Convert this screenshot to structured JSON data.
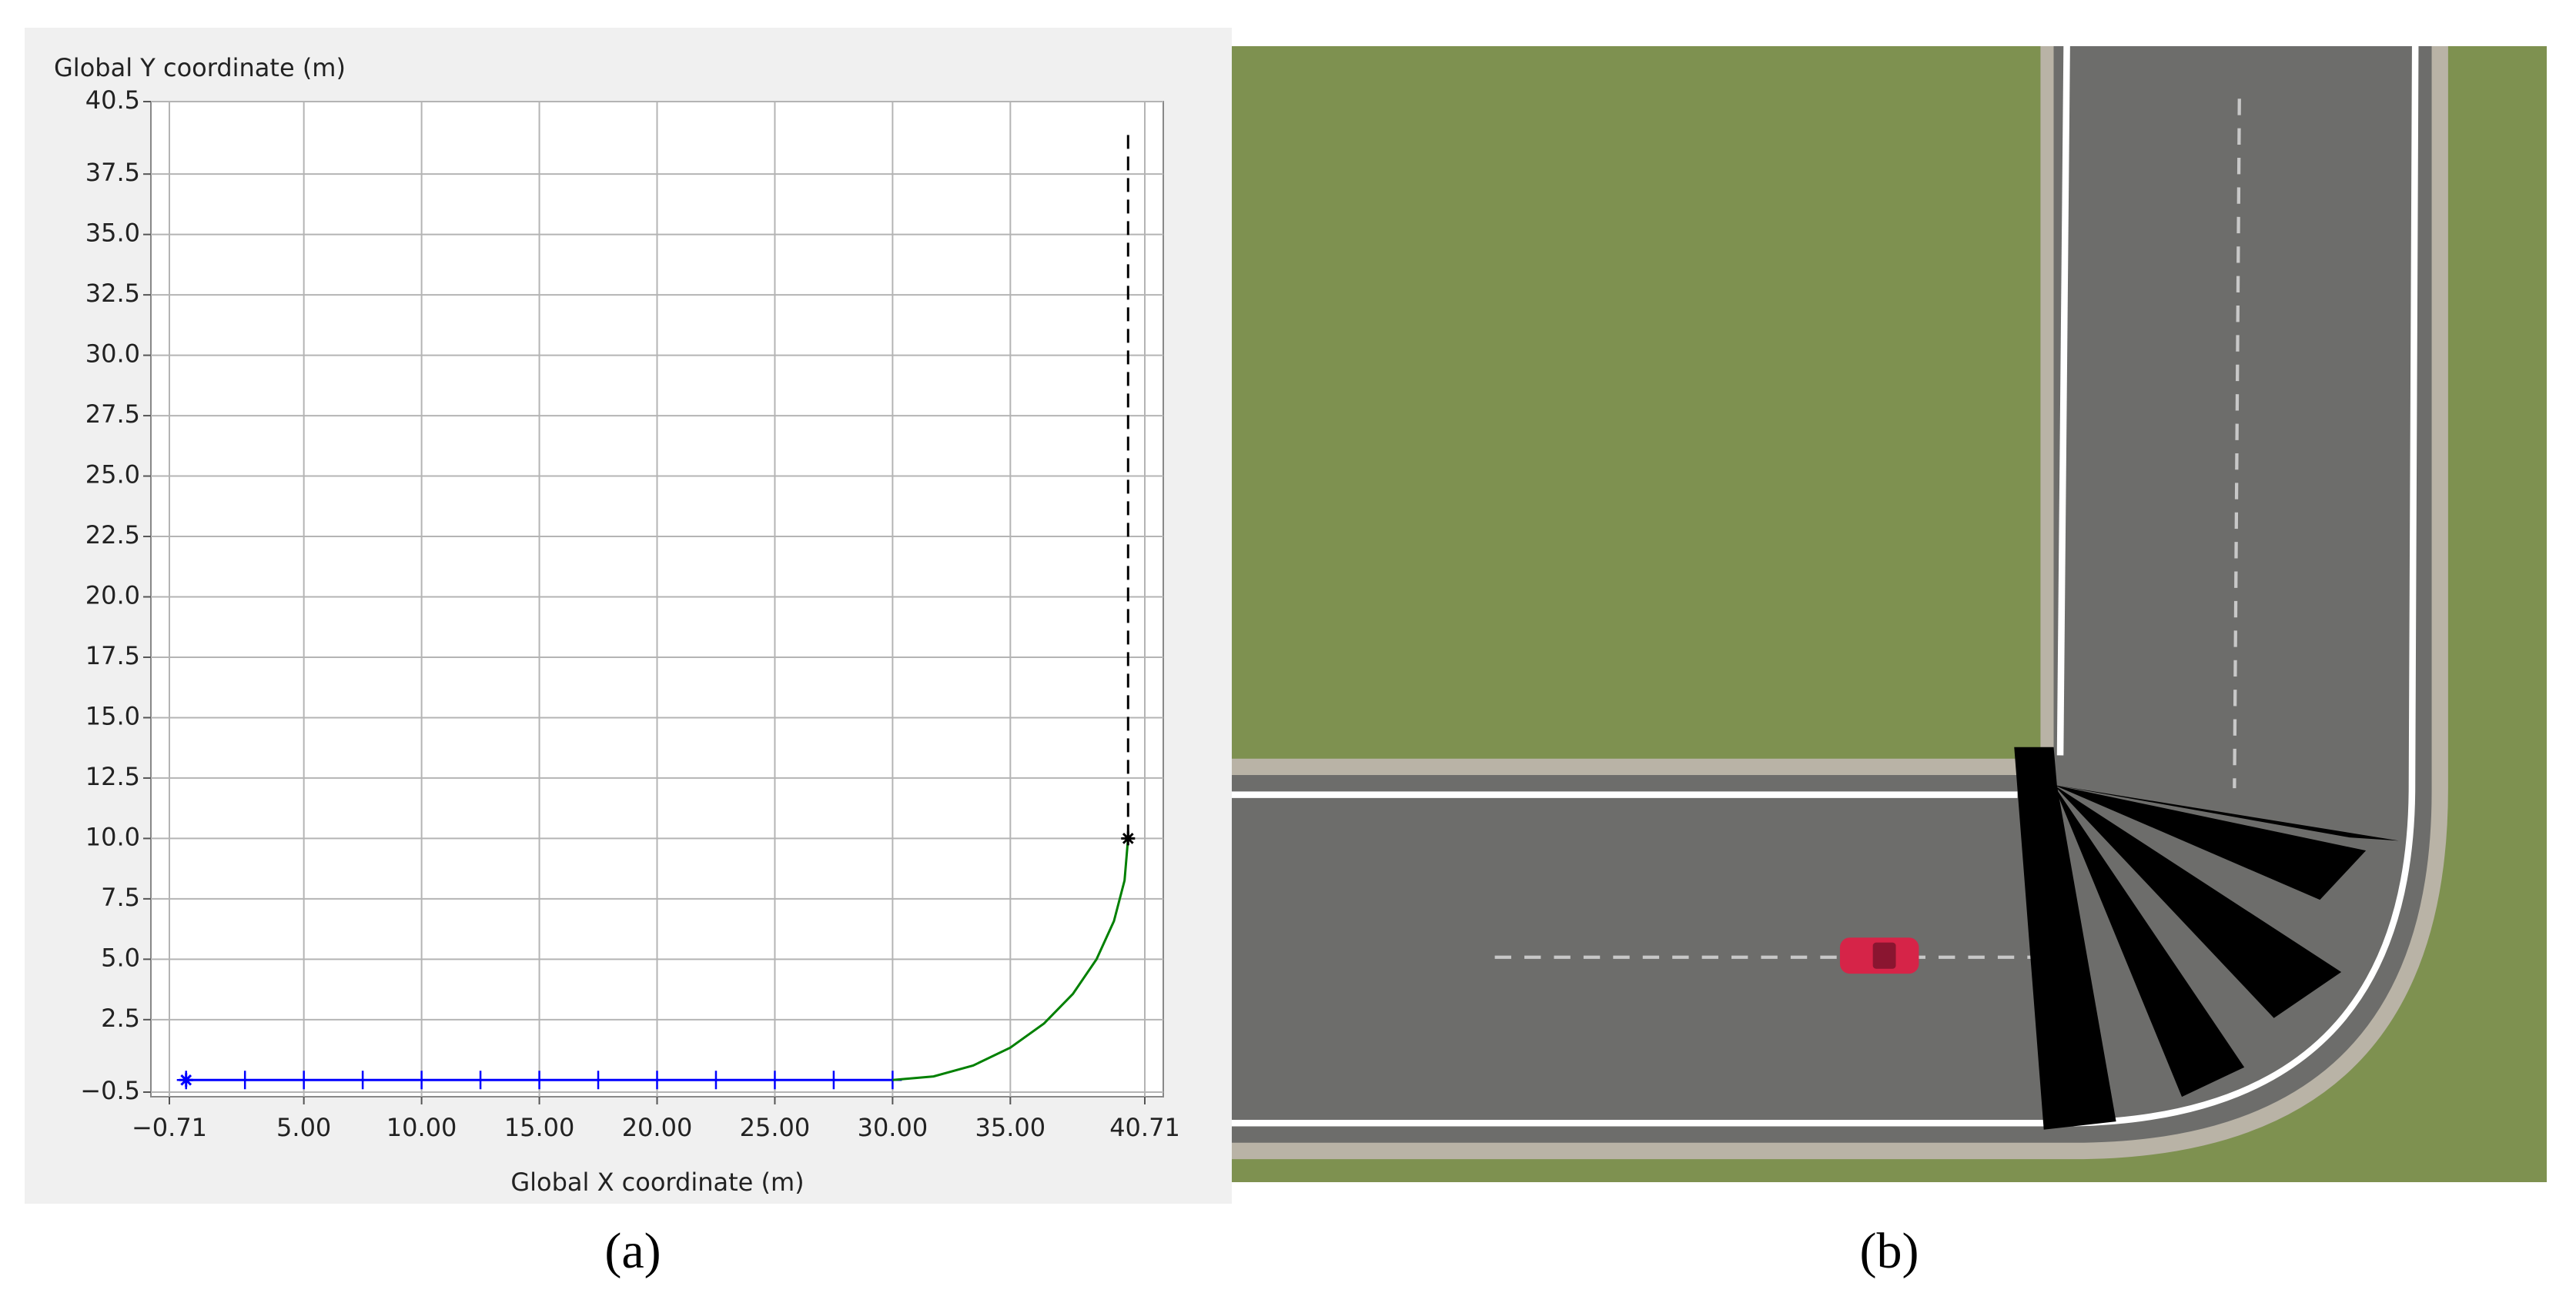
{
  "chart_data": {
    "type": "line",
    "ylabel": "Global Y coordinate (m)",
    "xlabel": "Global X coordinate (m)",
    "xlim": [
      -0.71,
      40.71
    ],
    "xticks": [
      {
        "value": -0.71,
        "label": "−0.71"
      },
      {
        "value": 5,
        "label": "5.00"
      },
      {
        "value": 10,
        "label": "10.00"
      },
      {
        "value": 15,
        "label": "15.00"
      },
      {
        "value": 20,
        "label": "20.00"
      },
      {
        "value": 25,
        "label": "25.00"
      },
      {
        "value": 30,
        "label": "30.00"
      },
      {
        "value": 35,
        "label": "35.00"
      },
      {
        "value": 40.71,
        "label": "40.71"
      }
    ],
    "ylim": [
      -0.5,
      40.5
    ],
    "yticks": [
      {
        "value": -0.5,
        "label": "−0.5"
      },
      2.5,
      {
        "value": 5,
        "label": "5.0"
      },
      7.5,
      {
        "value": 10,
        "label": "10.0"
      },
      12.5,
      {
        "value": 15,
        "label": "15.0"
      },
      17.5,
      {
        "value": 20,
        "label": "20.0"
      },
      22.5,
      {
        "value": 25,
        "label": "25.0"
      },
      27.5,
      {
        "value": 30,
        "label": "30.0"
      },
      32.5,
      {
        "value": 35,
        "label": "35.0"
      },
      37.5,
      40.5
    ],
    "grid": true,
    "series": [
      {
        "color": "#0000ff",
        "marker": "plus",
        "dash": false,
        "x": [
          0,
          2.5,
          5,
          7.5,
          10,
          12.5,
          15,
          17.5,
          20,
          22.5,
          25,
          27.5,
          30
        ],
        "values": [
          0,
          0,
          0,
          0,
          0,
          0,
          0,
          0,
          0,
          0,
          0,
          0,
          0
        ]
      },
      {
        "color": "#008000",
        "marker": "none",
        "dash": false,
        "x": [
          30,
          31.74,
          33.42,
          35,
          36.43,
          37.66,
          38.66,
          39.4,
          39.85,
          40
        ],
        "values": [
          0,
          0.15,
          0.6,
          1.34,
          2.34,
          3.57,
          5,
          6.58,
          8.26,
          10
        ]
      },
      {
        "color": "#000000",
        "marker": "none",
        "dash": true,
        "x": [
          40,
          40
        ],
        "values": [
          10,
          39.3
        ]
      }
    ],
    "points": [
      {
        "x": 0,
        "y": 0,
        "color": "#0000ff",
        "shape": "asterisk"
      },
      {
        "x": 40,
        "y": 10,
        "color": "#000000",
        "shape": "asterisk"
      }
    ]
  },
  "panel_labels": [
    "(a)",
    "(b)"
  ]
}
